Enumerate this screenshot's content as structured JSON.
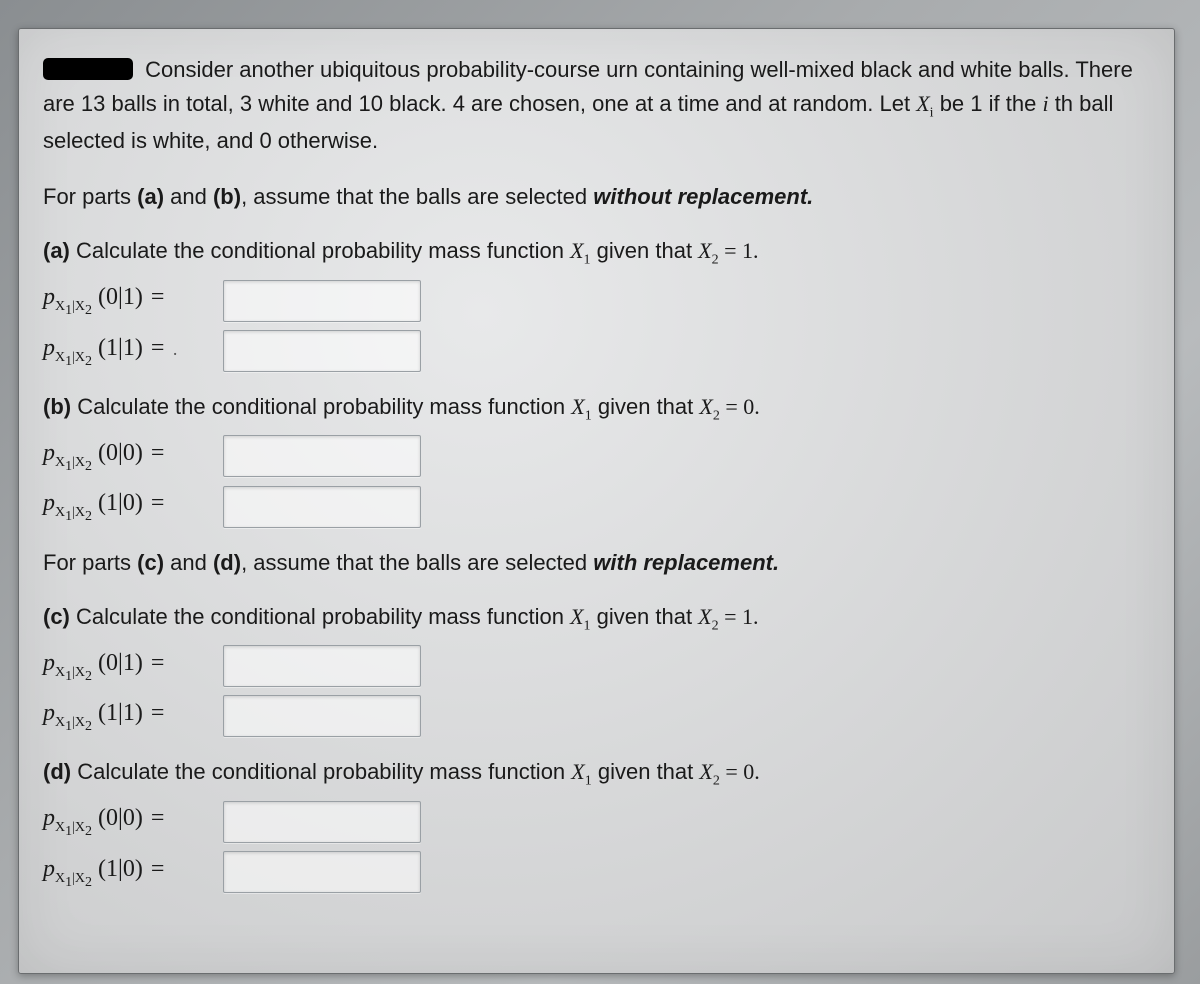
{
  "colors": {
    "page_bg_from": "#8a8e91",
    "page_bg_to": "#9a9d9f",
    "paper_bg_center": "#e8e9ea",
    "paper_bg_edge": "#c8c9ca",
    "paper_border": "#6a6d6f",
    "text_color": "#1a1a1a",
    "input_border": "#9aa0a5",
    "input_bg": "rgba(255,255,255,0.55)",
    "redacted_bg": "#000000"
  },
  "typography": {
    "body_font": "Arial, Helvetica, sans-serif",
    "math_font": "Times New Roman, Times, serif",
    "body_size_pt": 17,
    "math_size_pt": 18,
    "sub_size_pt": 11
  },
  "problem": {
    "intro_part1": "Consider another ubiquitous probability-course urn containing well-mixed black and white balls. There are 13 balls in total, 3 white and 10 black. 4 are chosen, one at a time and at random. Let ",
    "intro_var_html": "X<sub>i</sub>",
    "intro_part2": " be 1 if the ",
    "intro_ith": "i",
    "intro_part3": "th ball selected is white, and 0 otherwise."
  },
  "instruction_ab": {
    "prefix": "For parts ",
    "a": "(a)",
    "mid": " and ",
    "b": "(b)",
    "suffix": ", assume that the balls are selected ",
    "emph": "without replacement.",
    "end": ""
  },
  "instruction_cd": {
    "prefix": "For parts ",
    "c": "(c)",
    "mid": " and ",
    "d": "(d)",
    "suffix": ", assume that the balls are selected ",
    "emph": "with replacement.",
    "end": ""
  },
  "parts": {
    "a": {
      "label": "(a)",
      "text_before": " Calculate the conditional probability mass function ",
      "var_html": "X<sub>1</sub>",
      "text_mid": " given that ",
      "cond_html": "X<sub>2</sub> <span class=\"eq\">= 1.</span>",
      "rows": [
        {
          "label_html": "<span class=\"p\">p</span><sub>X<sub>1</sub>|X<sub>2</sub></sub><span class=\"arg\"> (0|1)</span><span class=\"eq\"> =</span>",
          "name": "input-a-0g1",
          "value": ""
        },
        {
          "label_html": "<span class=\"p\">p</span><sub>X<sub>1</sub>|X<sub>2</sub></sub><span class=\"arg\"> (1|1)</span><span class=\"eq\"> =</span><span class=\"dotspeck\"> .</span>",
          "name": "input-a-1g1",
          "value": ""
        }
      ]
    },
    "b": {
      "label": "(b)",
      "text_before": " Calculate the conditional probability mass function ",
      "var_html": "X<sub>1</sub>",
      "text_mid": " given that ",
      "cond_html": "X<sub>2</sub> <span class=\"eq\">= 0.</span>",
      "rows": [
        {
          "label_html": "<span class=\"p\">p</span><sub>X<sub>1</sub>|X<sub>2</sub></sub><span class=\"arg\"> (0|0)</span><span class=\"eq\"> =</span>",
          "name": "input-b-0g0",
          "value": ""
        },
        {
          "label_html": "<span class=\"p\">p</span><sub>X<sub>1</sub>|X<sub>2</sub></sub><span class=\"arg\"> (1|0)</span><span class=\"eq\"> =</span>",
          "name": "input-b-1g0",
          "value": ""
        }
      ]
    },
    "c": {
      "label": "(c)",
      "text_before": " Calculate the conditional probability mass function ",
      "var_html": "X<sub>1</sub>",
      "text_mid": " given that ",
      "cond_html": "X<sub>2</sub> <span class=\"eq\">= 1.</span>",
      "rows": [
        {
          "label_html": "<span class=\"p\">p</span><sub>X<sub>1</sub>|X<sub>2</sub></sub><span class=\"arg\"> (0|1)</span><span class=\"eq\"> =</span>",
          "name": "input-c-0g1",
          "value": ""
        },
        {
          "label_html": "<span class=\"p\">p</span><sub>X<sub>1</sub>|X<sub>2</sub></sub><span class=\"arg\"> (1|1)</span><span class=\"eq\"> =</span>",
          "name": "input-c-1g1",
          "value": ""
        }
      ]
    },
    "d": {
      "label": "(d)",
      "text_before": " Calculate the conditional probability mass function ",
      "var_html": "X<sub>1</sub>",
      "text_mid": " given that ",
      "cond_html": "X<sub>2</sub> <span class=\"eq\">= 0.</span>",
      "rows": [
        {
          "label_html": "<span class=\"p\">p</span><sub>X<sub>1</sub>|X<sub>2</sub></sub><span class=\"arg\"> (0|0)</span><span class=\"eq\"> =</span>",
          "name": "input-d-0g0",
          "value": ""
        },
        {
          "label_html": "<span class=\"p\">p</span><sub>X<sub>1</sub>|X<sub>2</sub></sub><span class=\"arg\"> (1|0)</span><span class=\"eq\"> =</span>",
          "name": "input-d-1g0",
          "value": ""
        }
      ]
    }
  }
}
